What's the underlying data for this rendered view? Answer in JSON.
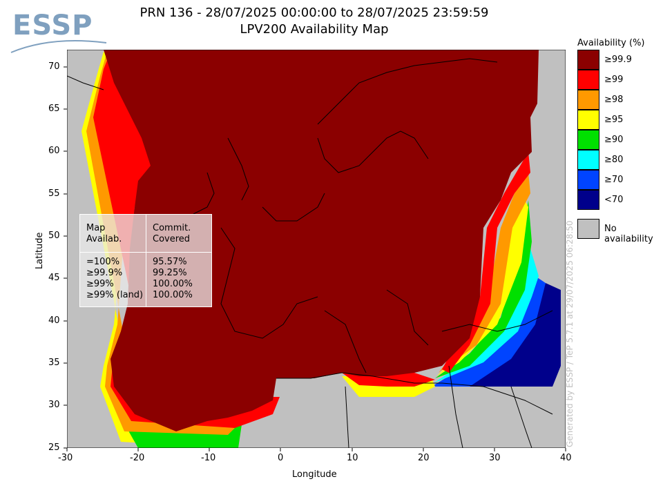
{
  "header": {
    "title_line1": "PRN 136 - 28/07/2025 00:00:00 to 28/07/2025 23:59:59",
    "title_line2": "LPV200 Availability Map",
    "logo_text": "ESSP"
  },
  "axes": {
    "xlabel": "Longitude",
    "ylabel": "Latitude",
    "x_ticks": [
      "-30",
      "-20",
      "-10",
      "0",
      "10",
      "20",
      "30",
      "40"
    ],
    "y_ticks": [
      "70",
      "65",
      "60",
      "55",
      "50",
      "45",
      "40",
      "35",
      "30",
      "25"
    ]
  },
  "legend": {
    "title": "Availability (%)",
    "items": [
      {
        "label": "≥99.9",
        "color": "#8b0000"
      },
      {
        "label": "≥99",
        "color": "#ff0000"
      },
      {
        "label": "≥98",
        "color": "#ff9900"
      },
      {
        "label": "≥95",
        "color": "#ffff00"
      },
      {
        "label": "≥90",
        "color": "#00e000"
      },
      {
        "label": "≥80",
        "color": "#00ffff"
      },
      {
        "label": "≥70",
        "color": "#0044ff"
      },
      {
        "label": "<70",
        "color": "#00008b"
      }
    ],
    "no_availability": {
      "label": "No availability",
      "color": "#c0c0c0"
    }
  },
  "stats_table": {
    "header_left": "Map\nAvailab.",
    "header_right": "Commit.\nCovered",
    "rows_left": "=100%\n≥99.9%\n≥99%\n≥99% (land)",
    "rows_right": "95.57%\n99.25%\n100.00%\n100.00%"
  },
  "credit": "Generated by ESSP / TeP 5.7.1 at 29/07/2025 06:28:50"
}
